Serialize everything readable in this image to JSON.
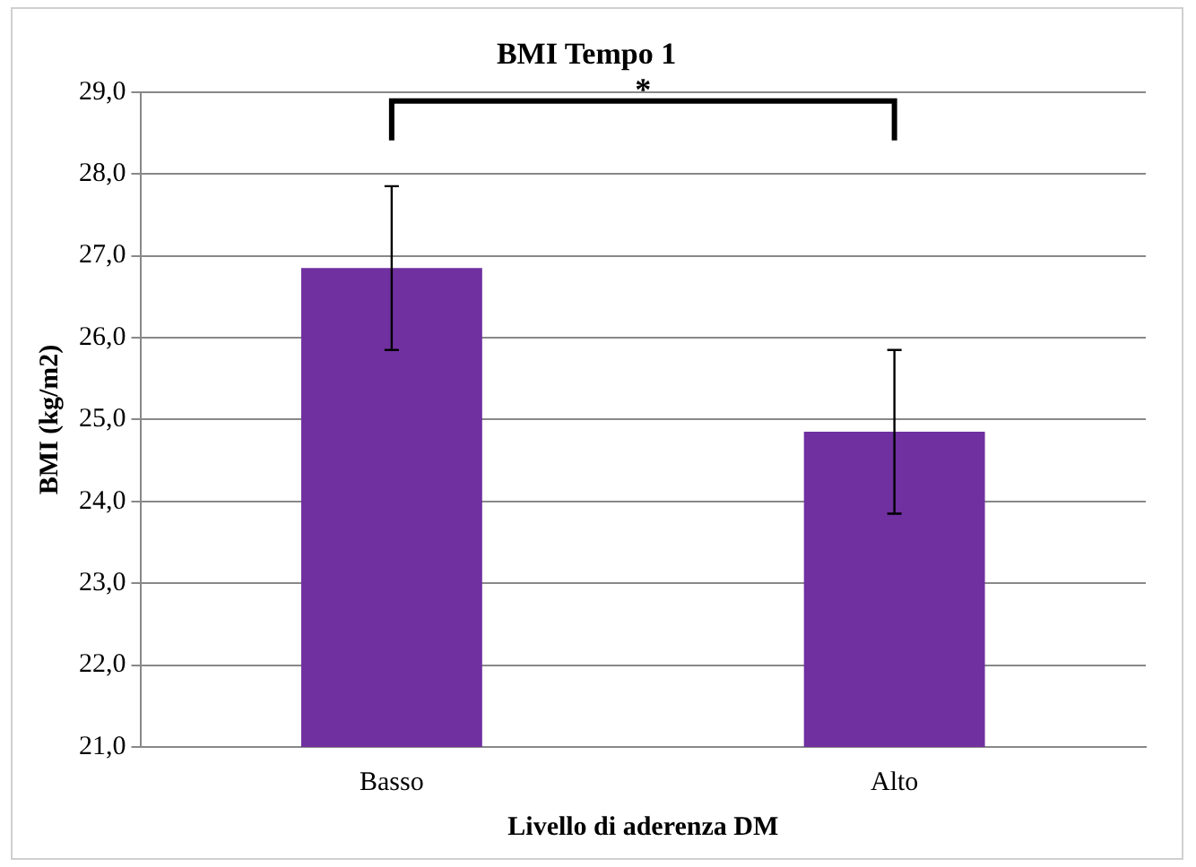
{
  "chart_data": {
    "type": "bar",
    "title": "BMI Tempo 1",
    "xlabel": "Livello di aderenza DM",
    "ylabel": "BMI (kg/m2)",
    "categories": [
      "Basso",
      "Alto"
    ],
    "series": [
      {
        "color": "#7030a0",
        "values": [
          26.85,
          24.85
        ],
        "errors": [
          1,
          1
        ]
      }
    ],
    "ylim": [
      21,
      29
    ],
    "yticks": [
      {
        "value": 21,
        "label": "21,0"
      },
      {
        "value": 22,
        "label": "22,0"
      },
      {
        "value": 23,
        "label": "23,0"
      },
      {
        "value": 24,
        "label": "24,0"
      },
      {
        "value": 25,
        "label": "25,0"
      },
      {
        "value": 26,
        "label": "26,0"
      },
      {
        "value": 27,
        "label": "27,0"
      },
      {
        "value": 28,
        "label": "28,0"
      },
      {
        "value": 29,
        "label": "29,0"
      }
    ],
    "grid": "y",
    "legend": false,
    "annotations": [
      "*"
    ]
  }
}
